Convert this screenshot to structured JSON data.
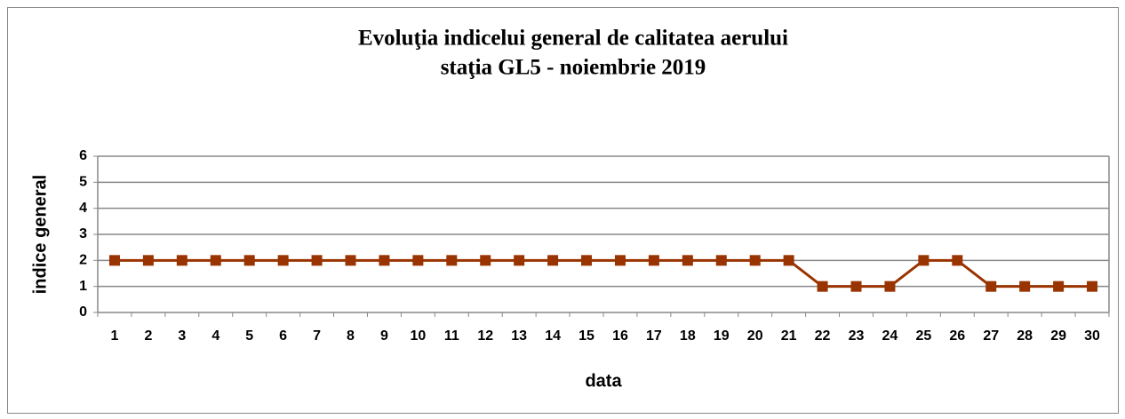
{
  "chart_data": {
    "type": "line",
    "title": "Evoluţia indicelui general de calitatea aerului",
    "subtitle": "staţia GL5 - noiembrie 2019",
    "x_label": "data",
    "y_label": "indice general",
    "categories": [
      "1",
      "2",
      "3",
      "4",
      "5",
      "6",
      "7",
      "8",
      "9",
      "10",
      "11",
      "12",
      "13",
      "14",
      "15",
      "16",
      "17",
      "18",
      "19",
      "20",
      "21",
      "22",
      "23",
      "24",
      "25",
      "26",
      "27",
      "28",
      "29",
      "30"
    ],
    "series": [
      {
        "name": "indice general",
        "color": "#993300",
        "values": [
          2,
          2,
          2,
          2,
          2,
          2,
          2,
          2,
          2,
          2,
          2,
          2,
          2,
          2,
          2,
          2,
          2,
          2,
          2,
          2,
          2,
          1,
          1,
          1,
          2,
          2,
          1,
          1,
          1,
          1
        ]
      }
    ],
    "ylim": [
      0,
      6
    ],
    "yticks": [
      0,
      1,
      2,
      3,
      4,
      5,
      6
    ],
    "grid": true,
    "marker": "square"
  }
}
